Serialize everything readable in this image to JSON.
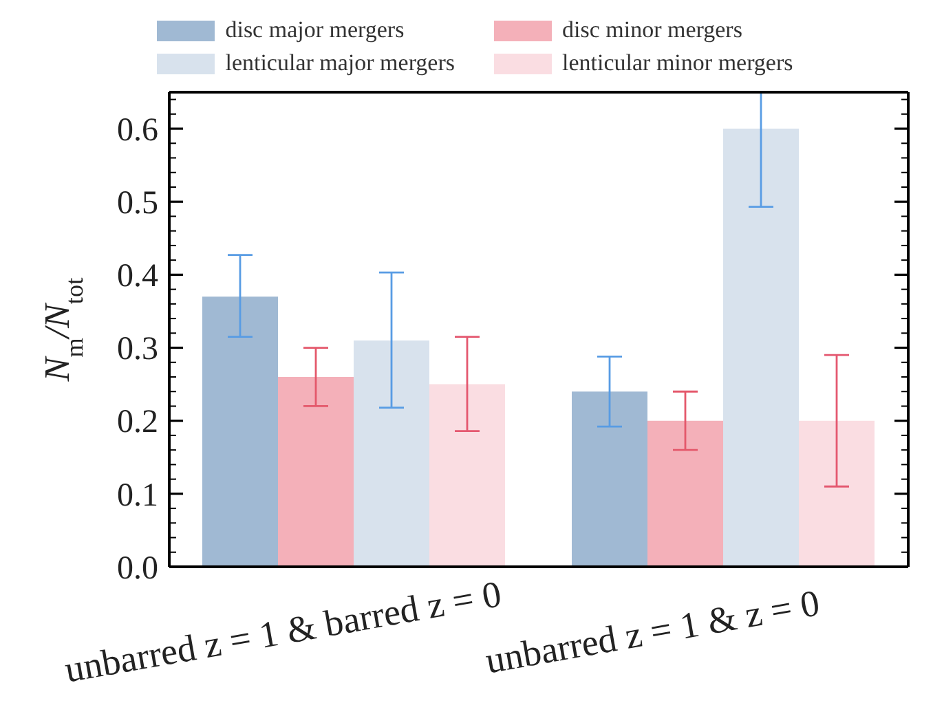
{
  "chart_data": {
    "type": "bar",
    "ylabel": "N$_{m}$/N$_{tot}$",
    "categories": [
      "unbarred z = 1 & barred z = 0",
      "unbarred z = 1 & z = 0"
    ],
    "series": [
      {
        "name": "disc major mergers",
        "color": "#a0b9d3",
        "values": [
          0.37,
          0.24
        ],
        "errors": [
          [
            0.315,
            0.427
          ],
          [
            0.192,
            0.288
          ]
        ]
      },
      {
        "name": "disc minor mergers",
        "color": "#f4b0b9",
        "values": [
          0.26,
          0.2
        ],
        "errors": [
          [
            0.22,
            0.3
          ],
          [
            0.16,
            0.24
          ]
        ]
      },
      {
        "name": "lenticular major mergers",
        "color": "#d8e2ed",
        "values": [
          0.31,
          0.6
        ],
        "errors": [
          [
            0.218,
            0.403
          ],
          [
            0.493,
            0.65
          ]
        ]
      },
      {
        "name": "lenticular minor mergers",
        "color": "#fadde2",
        "values": [
          0.25,
          0.2
        ],
        "errors": [
          [
            0.186,
            0.315
          ],
          [
            0.11,
            0.29
          ]
        ]
      }
    ],
    "ylim": [
      0,
      0.65
    ],
    "yticks": [
      {
        "value": 0,
        "label": "0.0"
      },
      {
        "value": 0.02,
        "label": null
      },
      {
        "value": 0.04,
        "label": null
      },
      {
        "value": 0.06,
        "label": null
      },
      {
        "value": 0.08,
        "label": null
      },
      0.1,
      {
        "value": 0.12,
        "label": null
      },
      {
        "value": 0.14,
        "label": null
      },
      {
        "value": 0.16,
        "label": null
      },
      {
        "value": 0.18,
        "label": null
      },
      0.2,
      {
        "value": 0.22,
        "label": null
      },
      {
        "value": 0.24,
        "label": null
      },
      {
        "value": 0.26,
        "label": null
      },
      {
        "value": 0.28,
        "label": null
      },
      0.3,
      {
        "value": 0.32,
        "label": null
      },
      {
        "value": 0.34,
        "label": null
      },
      {
        "value": 0.36,
        "label": null
      },
      {
        "value": 0.38,
        "label": null
      },
      0.4,
      {
        "value": 0.42,
        "label": null
      },
      {
        "value": 0.44,
        "label": null
      },
      {
        "value": 0.46,
        "label": null
      },
      {
        "value": 0.48,
        "label": null
      },
      0.5,
      {
        "value": 0.52,
        "label": null
      },
      {
        "value": 0.54,
        "label": null
      },
      {
        "value": 0.56,
        "label": null
      },
      {
        "value": 0.58,
        "label": null
      },
      0.6,
      {
        "value": 0.62,
        "label": null
      },
      {
        "value": 0.64,
        "label": null
      }
    ],
    "grid": false,
    "legend": "top"
  }
}
